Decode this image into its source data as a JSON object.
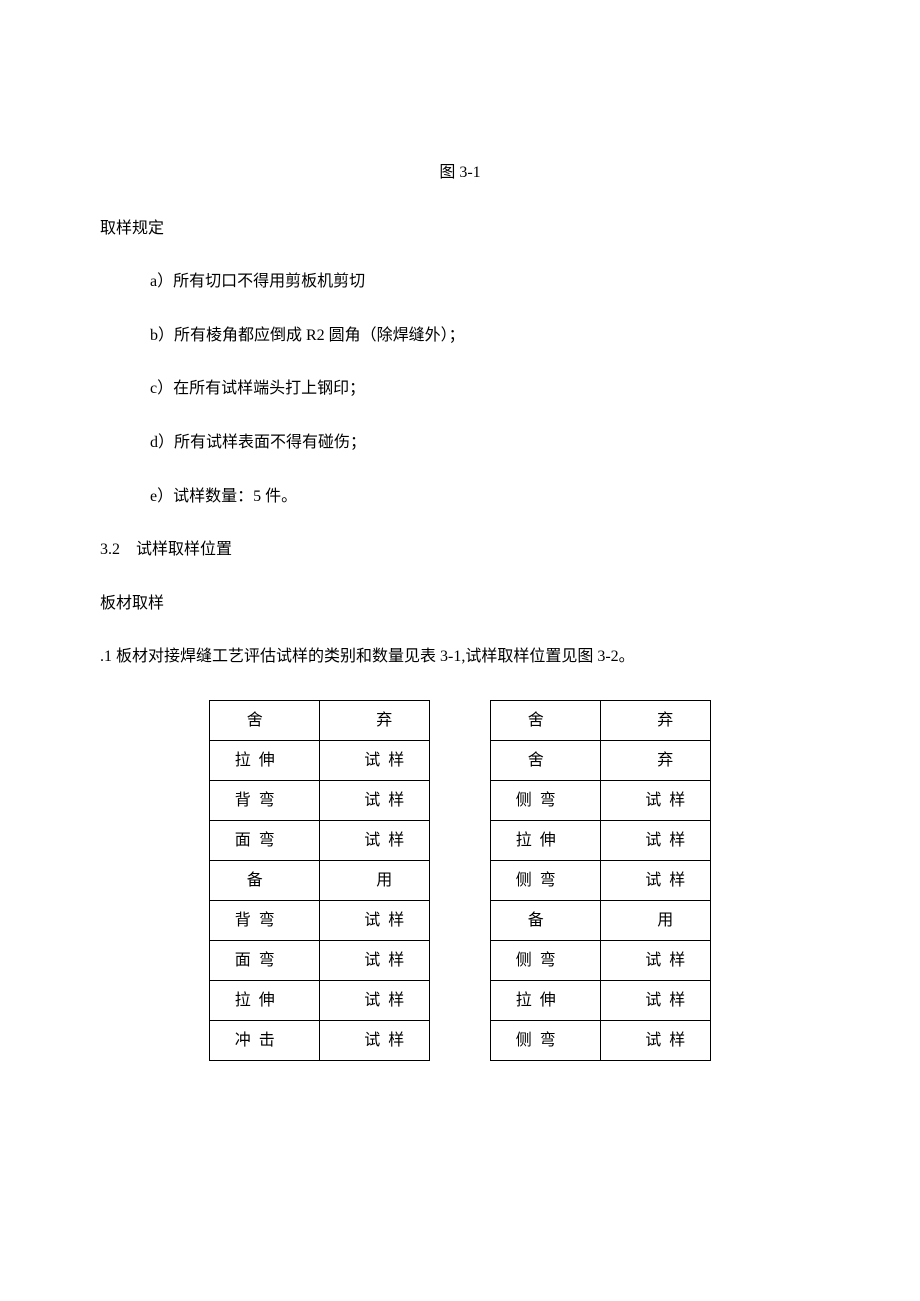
{
  "figure_label": "图 3-1",
  "heading_sampling": "取样规定",
  "items": {
    "a": "a）所有切口不得用剪板机剪切",
    "b": "b）所有棱角都应倒成 R2 圆角（除焊缝外）；",
    "c": "c）在所有试样端头打上钢印；",
    "d": "d）所有试样表面不得有碰伤；",
    "e": "e）试样数量：5 件。"
  },
  "section_3_2": "3.2　试样取样位置",
  "plate_sampling": "板材取样",
  "paragraph_1": ".1 板材对接焊缝工艺评估试样的类别和数量见表 3-1,试样取样位置见图 3-2。",
  "table_left": {
    "rows": [
      [
        "舍",
        "",
        "",
        "弃"
      ],
      [
        "拉伸",
        "",
        "",
        "试样"
      ],
      [
        "背弯",
        "",
        "",
        "试样"
      ],
      [
        "面弯",
        "",
        "",
        "试样"
      ],
      [
        "备",
        "",
        "",
        "用"
      ],
      [
        "背弯",
        "",
        "",
        "试样"
      ],
      [
        "面弯",
        "",
        "",
        "试样"
      ],
      [
        "拉伸",
        "",
        "",
        "试样"
      ],
      [
        "冲击",
        "",
        "",
        "试样"
      ]
    ]
  },
  "table_right": {
    "rows": [
      [
        "舍",
        "",
        "",
        "弃"
      ],
      [
        "舍",
        "",
        "",
        "弃"
      ],
      [
        "侧弯",
        "",
        "",
        "试样"
      ],
      [
        "拉伸",
        "",
        "",
        "试样"
      ],
      [
        "侧弯",
        "",
        "",
        "试样"
      ],
      [
        "备",
        "",
        "",
        "用"
      ],
      [
        "侧弯",
        "",
        "",
        "试样"
      ],
      [
        "拉伸",
        "",
        "",
        "试样"
      ],
      [
        "侧弯",
        "",
        "",
        "试样"
      ]
    ]
  }
}
